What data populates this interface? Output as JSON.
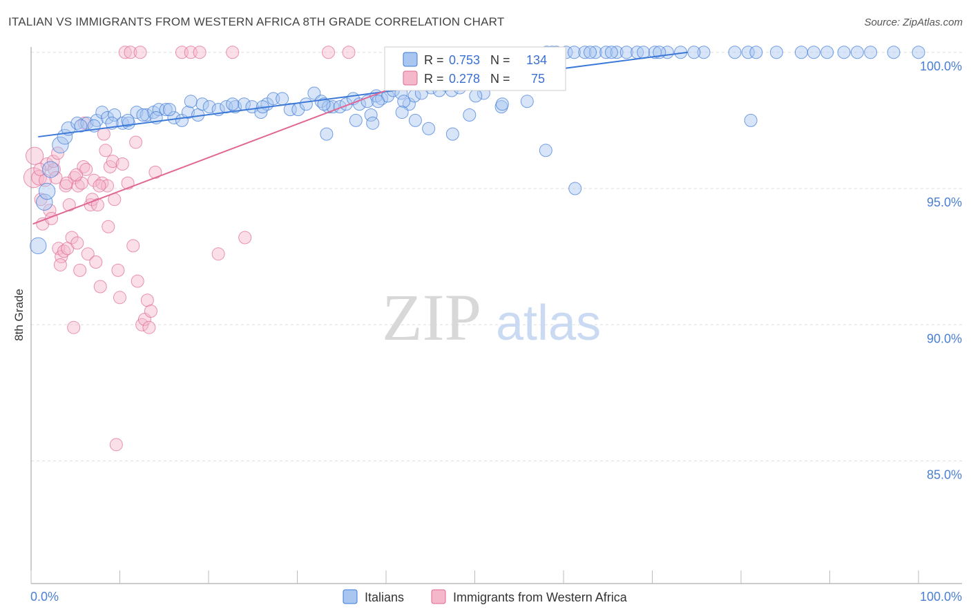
{
  "title": "ITALIAN VS IMMIGRANTS FROM WESTERN AFRICA 8TH GRADE CORRELATION CHART",
  "source": "Source: ZipAtlas.com",
  "watermark": {
    "zip": "ZIP",
    "atlas": "atlas"
  },
  "colors": {
    "blue": "#3b78d8",
    "blue_fill": "#a9c6f0",
    "pink": "#e06793",
    "pink_fill": "#f5b8cb",
    "tick_label": "#4a7fd4",
    "grid": "#dddddd"
  },
  "legend": {
    "r_label": "R =",
    "n_label": "N =",
    "entries": [
      {
        "r": "0.753",
        "n": "134"
      },
      {
        "r": "0.278",
        "n": "75"
      }
    ]
  },
  "chart_data": {
    "type": "scatter",
    "title": "ITALIAN VS IMMIGRANTS FROM WESTERN AFRICA 8TH GRADE CORRELATION CHART",
    "xlabel": "",
    "ylabel": "8th Grade",
    "xlim": [
      0,
      100
    ],
    "ylim": [
      80.5,
      100.4
    ],
    "x_tick_labels": [
      "0.0%",
      "100.0%"
    ],
    "y_ticks": [
      85,
      90,
      95,
      100
    ],
    "y_tick_labels": [
      "85.0%",
      "90.0%",
      "95.0%",
      "100.0%"
    ],
    "grid": "horizontal dashed",
    "legend_position": "top-center",
    "series": [
      {
        "name": "Italians",
        "color": "#3b78d8",
        "r": 0.753,
        "n": 134,
        "trend": [
          [
            0.8,
            96.9
          ],
          [
            74,
            100.0
          ]
        ],
        "points": [
          [
            0.8,
            92.9,
            1.3
          ],
          [
            1.5,
            94.5,
            1.3
          ],
          [
            1.8,
            94.9,
            1.3
          ],
          [
            2.2,
            95.7,
            1.3
          ],
          [
            3.3,
            96.6,
            1.3
          ],
          [
            3.8,
            96.9,
            1.2
          ],
          [
            4.2,
            97.2,
            1.1
          ],
          [
            5.2,
            97.4,
            1
          ],
          [
            6.3,
            97.4,
            1
          ],
          [
            7.4,
            97.5,
            1
          ],
          [
            8.0,
            97.8,
            1
          ],
          [
            8.6,
            97.6,
            1
          ],
          [
            9.4,
            97.7,
            1
          ],
          [
            10.3,
            97.4,
            1
          ],
          [
            11.0,
            97.4,
            1
          ],
          [
            11.9,
            97.8,
            1
          ],
          [
            13.0,
            97.7,
            1
          ],
          [
            13.8,
            97.8,
            1
          ],
          [
            14.4,
            97.9,
            1
          ],
          [
            15.2,
            97.9,
            1
          ],
          [
            16.1,
            97.6,
            1
          ],
          [
            17.0,
            97.5,
            1
          ],
          [
            17.7,
            97.8,
            1
          ],
          [
            18.8,
            97.7,
            1
          ],
          [
            19.3,
            98.1,
            1
          ],
          [
            20.1,
            98.0,
            1
          ],
          [
            21.1,
            97.9,
            1
          ],
          [
            22.0,
            98.0,
            1
          ],
          [
            23.0,
            98.0,
            1
          ],
          [
            24.0,
            98.1,
            1
          ],
          [
            24.9,
            98.0,
            1
          ],
          [
            25.9,
            97.8,
            1
          ],
          [
            26.6,
            98.1,
            1
          ],
          [
            27.3,
            98.3,
            1
          ],
          [
            28.3,
            98.3,
            1
          ],
          [
            29.2,
            97.9,
            1
          ],
          [
            30.1,
            97.9,
            1
          ],
          [
            31.0,
            98.1,
            1
          ],
          [
            31.9,
            98.5,
            1
          ],
          [
            32.7,
            98.2,
            1
          ],
          [
            33.5,
            98.0,
            1
          ],
          [
            34.0,
            98.0,
            1
          ],
          [
            34.8,
            98.0,
            1
          ],
          [
            35.5,
            98.1,
            1
          ],
          [
            36.3,
            98.3,
            1
          ],
          [
            37.0,
            98.1,
            1
          ],
          [
            37.9,
            98.2,
            1
          ],
          [
            38.9,
            98.4,
            1
          ],
          [
            39.5,
            98.3,
            1
          ],
          [
            40.2,
            98.4,
            1
          ],
          [
            40.8,
            98.6,
            1
          ],
          [
            41.7,
            98.5,
            1
          ],
          [
            42.6,
            98.1,
            1
          ],
          [
            43.2,
            98.4,
            1
          ],
          [
            44.0,
            98.5,
            1
          ],
          [
            45.1,
            98.7,
            1
          ],
          [
            46.0,
            98.6,
            1
          ],
          [
            46.7,
            98.8,
            1
          ],
          [
            48.0,
            99.0,
            1
          ],
          [
            49.0,
            99.1,
            1
          ],
          [
            49.8,
            99.2,
            1
          ],
          [
            50.4,
            99.3,
            1
          ],
          [
            51.5,
            99.5,
            1
          ],
          [
            52.6,
            99.5,
            1
          ],
          [
            53.6,
            99.7,
            1
          ],
          [
            54.7,
            99.6,
            1
          ],
          [
            55.8,
            99.9,
            1
          ],
          [
            57.2,
            99.8,
            1
          ],
          [
            58.1,
            100.0,
            1
          ],
          [
            59.2,
            100.0,
            1
          ],
          [
            60.3,
            100.0,
            1
          ],
          [
            61.2,
            100.0,
            1
          ],
          [
            62.4,
            100.0,
            1
          ],
          [
            63.6,
            100.0,
            1
          ],
          [
            64.8,
            100.0,
            1
          ],
          [
            66.0,
            100.0,
            1
          ],
          [
            67.1,
            100.0,
            1
          ],
          [
            68.3,
            100.0,
            1
          ],
          [
            69.0,
            100.0,
            1
          ],
          [
            70.3,
            100.0,
            1
          ],
          [
            71.7,
            100.0,
            1
          ],
          [
            73.2,
            100.0,
            1
          ],
          [
            75.8,
            100.0,
            1
          ],
          [
            79.3,
            100.0,
            1
          ],
          [
            80.8,
            100.0,
            1
          ],
          [
            84.0,
            100.0,
            1
          ],
          [
            86.8,
            100.0,
            1
          ],
          [
            88.2,
            100.0,
            1
          ],
          [
            91.6,
            100.0,
            1
          ],
          [
            93.1,
            100.0,
            1
          ],
          [
            94.6,
            100.0,
            1
          ],
          [
            97.2,
            100.0,
            1
          ],
          [
            100.0,
            100.0,
            1
          ],
          [
            58.7,
            100.0,
            1
          ],
          [
            63.0,
            100.0,
            1
          ],
          [
            65.4,
            100.0,
            1
          ],
          [
            70.8,
            100.0,
            1
          ],
          [
            74.7,
            100.0,
            1
          ],
          [
            81.7,
            100.0,
            1
          ],
          [
            89.7,
            100.0,
            1
          ],
          [
            52.1,
            99.4,
            1
          ],
          [
            55.0,
            99.3,
            1
          ],
          [
            47.4,
            98.6,
            1
          ],
          [
            48.3,
            98.7,
            1
          ],
          [
            42.0,
            98.2,
            1
          ],
          [
            39.1,
            98.2,
            1
          ],
          [
            33.0,
            98.1,
            1
          ],
          [
            38.3,
            97.7,
            1
          ],
          [
            41.8,
            97.8,
            1
          ],
          [
            26.1,
            98.0,
            1
          ],
          [
            22.7,
            98.1,
            1
          ],
          [
            18.0,
            98.2,
            1
          ],
          [
            15.6,
            97.9,
            1
          ],
          [
            14.1,
            97.6,
            1
          ],
          [
            12.6,
            97.7,
            1
          ],
          [
            10.9,
            97.5,
            1
          ],
          [
            9.1,
            97.4,
            1
          ],
          [
            7.1,
            97.3,
            1
          ],
          [
            5.6,
            97.3,
            1
          ],
          [
            51.0,
            98.5,
            1
          ],
          [
            54.0,
            99.0,
            1
          ],
          [
            53.3,
            99.0,
            1
          ],
          [
            56.6,
            99.8,
            1
          ],
          [
            50.1,
            98.4,
            1
          ],
          [
            43.3,
            97.5,
            1
          ],
          [
            47.5,
            97.0,
            1
          ],
          [
            49.4,
            97.7,
            1
          ],
          [
            53.0,
            98.0,
            1
          ],
          [
            38.5,
            97.4,
            1
          ],
          [
            36.6,
            97.5,
            1
          ],
          [
            33.3,
            97.0,
            1
          ],
          [
            44.8,
            97.2,
            1
          ],
          [
            58.0,
            96.4,
            1
          ],
          [
            61.3,
            95.0,
            1
          ],
          [
            53.1,
            98.1,
            1
          ],
          [
            55.9,
            98.2,
            1
          ],
          [
            81.1,
            97.5,
            1
          ]
        ]
      },
      {
        "name": "Immigrants from Western Africa",
        "color": "#e06793",
        "r": 0.278,
        "n": 75,
        "trend": [
          [
            0.2,
            93.7
          ],
          [
            40,
            98.6
          ]
        ],
        "points": [
          [
            0.3,
            95.4,
            1.6
          ],
          [
            0.4,
            96.2,
            1.4
          ],
          [
            0.9,
            95.4,
            1.2
          ],
          [
            1.1,
            94.6,
            1
          ],
          [
            1.3,
            93.7,
            1
          ],
          [
            1.6,
            95.3,
            1
          ],
          [
            1.8,
            95.9,
            1
          ],
          [
            2.1,
            94.2,
            1
          ],
          [
            2.3,
            93.9,
            1
          ],
          [
            2.6,
            95.7,
            1
          ],
          [
            2.8,
            95.4,
            1
          ],
          [
            3.1,
            92.8,
            1
          ],
          [
            3.4,
            92.5,
            1
          ],
          [
            3.3,
            92.2,
            1
          ],
          [
            3.7,
            92.7,
            1
          ],
          [
            3.9,
            95.1,
            1
          ],
          [
            4.1,
            92.8,
            1
          ],
          [
            4.3,
            94.4,
            1
          ],
          [
            4.6,
            93.2,
            1
          ],
          [
            4.9,
            95.4,
            1
          ],
          [
            5.2,
            93.0,
            1
          ],
          [
            4.8,
            89.9,
            1
          ],
          [
            5.3,
            95.1,
            1
          ],
          [
            5.5,
            92.0,
            1
          ],
          [
            5.7,
            95.2,
            1
          ],
          [
            5.9,
            95.8,
            1
          ],
          [
            6.2,
            95.7,
            1
          ],
          [
            6.4,
            92.6,
            1
          ],
          [
            6.7,
            94.4,
            1
          ],
          [
            6.9,
            94.6,
            1
          ],
          [
            7.1,
            95.3,
            1
          ],
          [
            7.3,
            92.3,
            1
          ],
          [
            7.5,
            94.4,
            1
          ],
          [
            7.8,
            91.4,
            1
          ],
          [
            8.0,
            95.2,
            1
          ],
          [
            8.2,
            97.0,
            1
          ],
          [
            8.4,
            96.4,
            1
          ],
          [
            8.6,
            95.1,
            1
          ],
          [
            8.7,
            93.6,
            1
          ],
          [
            8.9,
            95.8,
            1
          ],
          [
            9.2,
            96.0,
            1
          ],
          [
            9.4,
            94.6,
            1
          ],
          [
            9.6,
            85.6,
            1
          ],
          [
            9.8,
            92.0,
            1
          ],
          [
            10.0,
            91.0,
            1
          ],
          [
            10.3,
            95.9,
            1
          ],
          [
            10.6,
            100.0,
            1
          ],
          [
            10.9,
            95.2,
            1
          ],
          [
            11.2,
            100.0,
            1
          ],
          [
            11.5,
            92.9,
            1
          ],
          [
            11.8,
            96.7,
            1
          ],
          [
            12.0,
            91.6,
            1
          ],
          [
            12.3,
            100.0,
            1
          ],
          [
            12.5,
            90.0,
            1
          ],
          [
            12.8,
            90.2,
            1
          ],
          [
            13.1,
            90.9,
            1
          ],
          [
            13.3,
            89.9,
            1
          ],
          [
            13.5,
            90.5,
            1
          ],
          [
            14.0,
            95.6,
            1
          ],
          [
            17.0,
            100.0,
            1
          ],
          [
            18.0,
            100.0,
            1
          ],
          [
            19.0,
            100.0,
            1
          ],
          [
            21.1,
            92.6,
            1
          ],
          [
            22.7,
            100.0,
            1
          ],
          [
            24.1,
            93.2,
            1
          ],
          [
            33.5,
            100.0,
            1
          ],
          [
            35.8,
            100.0,
            1
          ],
          [
            6.0,
            97.4,
            1
          ],
          [
            4.0,
            95.2,
            1
          ],
          [
            7.7,
            95.1,
            1
          ],
          [
            2.5,
            96.0,
            1
          ],
          [
            5.1,
            95.5,
            1
          ],
          [
            1.0,
            95.7,
            1
          ],
          [
            3.0,
            96.3,
            1
          ]
        ]
      }
    ]
  }
}
